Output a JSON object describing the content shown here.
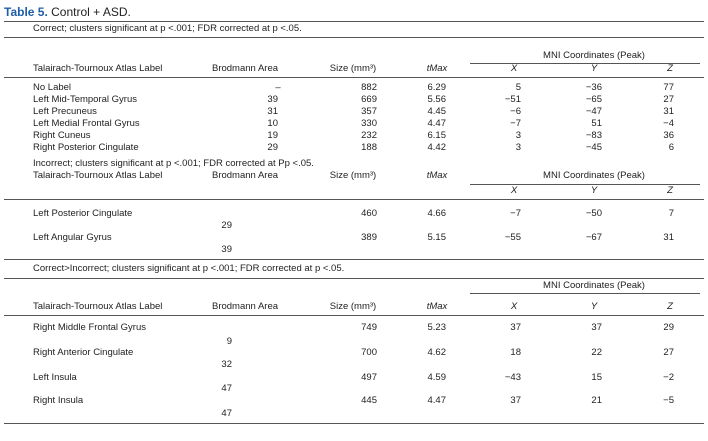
{
  "title": {
    "label": "Table 5.",
    "text": "Control + ASD."
  },
  "sections": [
    {
      "caption": "Correct; clusters significant at p <.001; FDR corrected at p <.05.",
      "columns": {
        "label": "Talairach-Tournoux Atlas Label",
        "brodmann": "Brodmann Area",
        "size": "Size (mm³)",
        "tmax": "tMax",
        "mni": "MNI Coordinates (Peak)",
        "x": "X",
        "y": "Y",
        "z": "Z"
      },
      "rows": [
        [
          "No Label",
          "–",
          "882",
          "6.29",
          "5",
          "−36",
          "77"
        ],
        [
          "Left Mid-Temporal Gyrus",
          "39",
          "669",
          "5.56",
          "−51",
          "−65",
          "27"
        ],
        [
          "Left Precuneus",
          "31",
          "357",
          "4.45",
          "−6",
          "−47",
          "31"
        ],
        [
          "Left Medial Frontal Gyrus",
          "10",
          "330",
          "4.47",
          "−7",
          "51",
          "−4"
        ],
        [
          "Right Cuneus",
          "19",
          "232",
          "6.15",
          "3",
          "−83",
          "36"
        ],
        [
          "Right Posterior Cingulate",
          "29",
          "188",
          "4.42",
          "3",
          "−45",
          "6"
        ]
      ]
    },
    {
      "caption": "Incorrect; clusters significant at p <.001; FDR corrected at Pp <.05.",
      "columns": {
        "label": "Talairach-Tournoux Atlas Label",
        "brodmann": "Brodmann Area",
        "size": "Size (mm³)",
        "tmax": "tMax",
        "mni": "MNI Coordinates (Peak)",
        "x": "X",
        "y": "Y",
        "z": "Z"
      },
      "rows": [
        [
          "Left Posterior Cingulate",
          "29",
          "460",
          "4.66",
          "−7",
          "−50",
          "7"
        ],
        [
          "Left Angular Gyrus",
          "39",
          "389",
          "5.15",
          "−55",
          "−67",
          "31"
        ]
      ]
    },
    {
      "caption": "Correct>Incorrect; clusters significant at p <.001; FDR corrected at p <.05.",
      "columns": {
        "label": "Talairach-Tournoux Atlas Label",
        "brodmann": "Brodmann Area",
        "size": "Size (mm³)",
        "tmax": "tMax",
        "mni": "MNI Coordinates (Peak)",
        "x": "X",
        "y": "Y",
        "z": "Z"
      },
      "rows": [
        [
          "Right Middle Frontal Gyrus",
          "9",
          "749",
          "5.23",
          "37",
          "37",
          "29"
        ],
        [
          "Right Anterior Cingulate",
          "32",
          "700",
          "4.62",
          "18",
          "22",
          "27"
        ],
        [
          "Left Insula",
          "47",
          "497",
          "4.59",
          "−43",
          "15",
          "−2"
        ],
        [
          "Right Insula",
          "47",
          "445",
          "4.47",
          "37",
          "21",
          "−5"
        ]
      ]
    }
  ]
}
